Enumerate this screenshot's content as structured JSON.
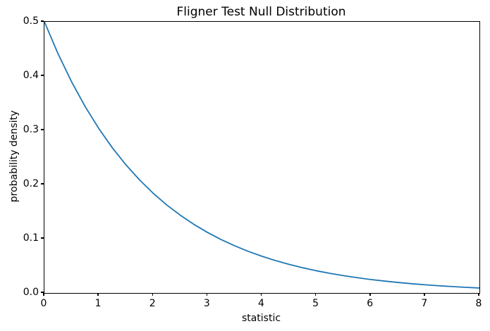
{
  "figure": {
    "background": "#ffffff",
    "spine_color": "#000000",
    "text_color": "#000000"
  },
  "chart_data": {
    "type": "line",
    "title": "Fligner Test Null Distribution",
    "xlabel": "statistic",
    "ylabel": "probability density",
    "xlim": [
      0,
      8
    ],
    "ylim": [
      0.0,
      0.5
    ],
    "grid": false,
    "legend": null,
    "x_tick_labels": [
      "0",
      "1",
      "2",
      "3",
      "4",
      "5",
      "6",
      "7",
      "8"
    ],
    "x_tick_values": [
      0,
      1,
      2,
      3,
      4,
      5,
      6,
      7,
      8
    ],
    "y_tick_labels": [
      "0.0",
      "0.1",
      "0.2",
      "0.3",
      "0.4",
      "0.5"
    ],
    "y_tick_values": [
      0.0,
      0.1,
      0.2,
      0.3,
      0.4,
      0.5
    ],
    "series": [
      {
        "color": "#1f77b4",
        "line_width": 1.8,
        "x": [
          0,
          0.25,
          0.5,
          0.75,
          1,
          1.25,
          1.5,
          1.75,
          2,
          2.25,
          2.5,
          2.75,
          3,
          3.25,
          3.5,
          3.75,
          4,
          4.25,
          4.5,
          4.75,
          5,
          5.25,
          5.5,
          5.75,
          6,
          6.25,
          6.5,
          6.75,
          7,
          7.25,
          7.5,
          7.75,
          8
        ],
        "y": [
          0.5,
          0.4412,
          0.3894,
          0.3436,
          0.3033,
          0.2676,
          0.2362,
          0.2084,
          0.1839,
          0.1623,
          0.1433,
          0.1264,
          0.1116,
          0.0985,
          0.0869,
          0.0767,
          0.0677,
          0.0597,
          0.0527,
          0.0465,
          0.041,
          0.0362,
          0.032,
          0.0282,
          0.0249,
          0.022,
          0.0194,
          0.0171,
          0.0151,
          0.0133,
          0.0118,
          0.0104,
          0.0092
        ]
      }
    ]
  }
}
